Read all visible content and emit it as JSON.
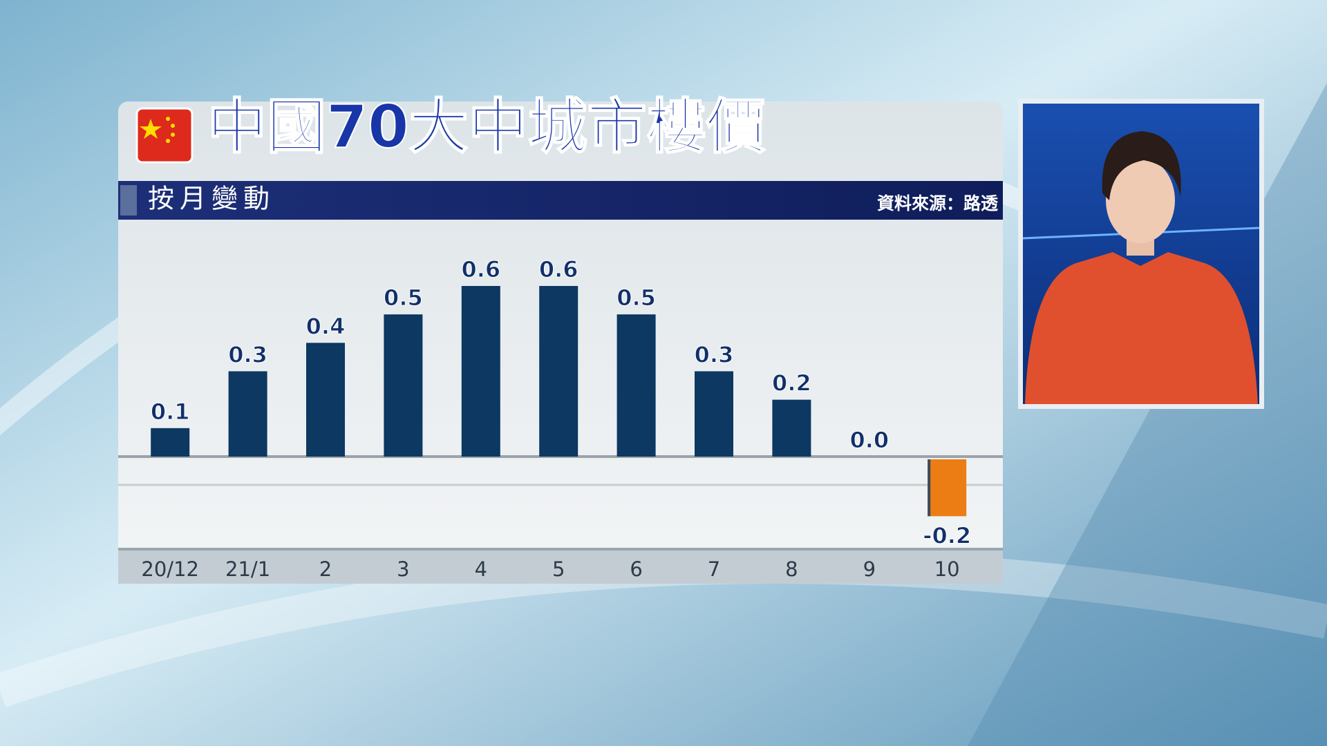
{
  "chart_data": {
    "type": "bar",
    "title": "中國70大中城市樓價",
    "subtitle": "按月變動",
    "source": "資料來源：路透",
    "categories": [
      "20/12",
      "21/1",
      "2",
      "3",
      "4",
      "5",
      "6",
      "7",
      "8",
      "9",
      "10"
    ],
    "values": [
      0.1,
      0.3,
      0.4,
      0.5,
      0.6,
      0.6,
      0.5,
      0.3,
      0.2,
      0.0,
      -0.2
    ],
    "value_labels": [
      "0.1",
      "0.3",
      "0.4",
      "0.5",
      "0.6",
      "0.6",
      "0.5",
      "0.3",
      "0.2",
      "0.0",
      "-0.2"
    ],
    "colors": [
      "#0c3862",
      "#0c3862",
      "#0c3862",
      "#0c3862",
      "#0c3862",
      "#0c3862",
      "#0c3862",
      "#0c3862",
      "#0c3862",
      "#0c3862",
      "#ec7d14"
    ]
  }
}
